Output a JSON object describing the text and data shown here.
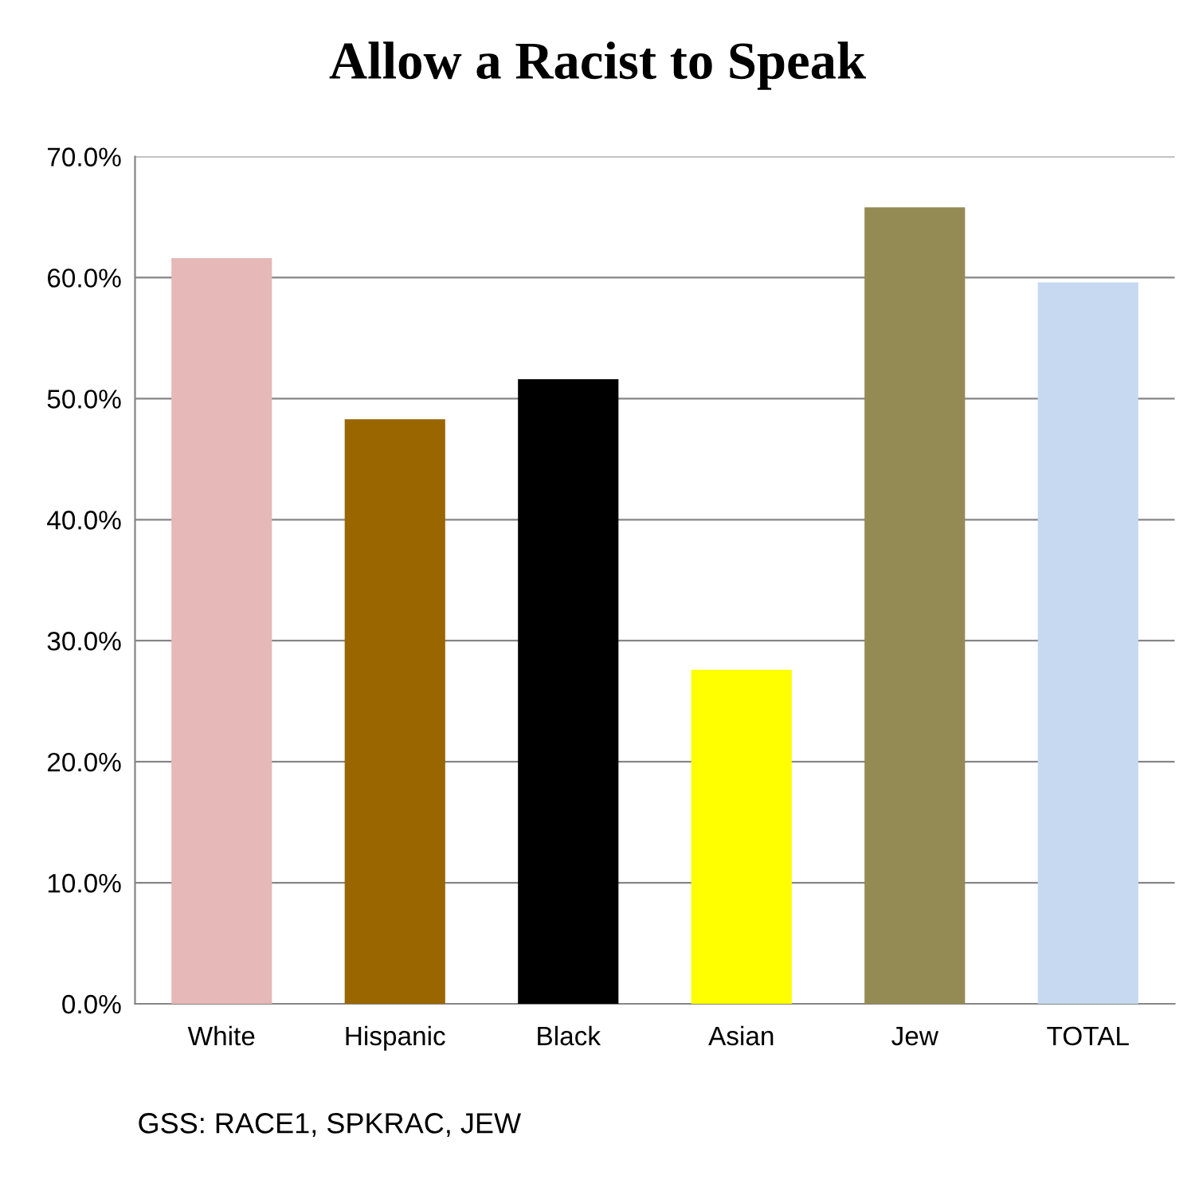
{
  "chart_data": {
    "type": "bar",
    "title": "Allow a Racist to Speak",
    "categories": [
      "White",
      "Hispanic",
      "Black",
      "Asian",
      "Jew",
      "TOTAL"
    ],
    "values": [
      61.6,
      48.3,
      51.6,
      27.6,
      65.8,
      59.6
    ],
    "colors": [
      "#e6b8b7",
      "#996600",
      "#000000",
      "#ffff00",
      "#948a54",
      "#c6d9f1"
    ],
    "ylim": [
      0,
      70
    ],
    "yticks": [
      {
        "value": 0,
        "label": "0.0%"
      },
      {
        "value": 10,
        "label": "10.0%"
      },
      {
        "value": 20,
        "label": "20.0%"
      },
      {
        "value": 30,
        "label": "30.0%"
      },
      {
        "value": 40,
        "label": "40.0%"
      },
      {
        "value": 50,
        "label": "50.0%"
      },
      {
        "value": 60,
        "label": "60.0%"
      },
      {
        "value": 70,
        "label": "70.0%"
      }
    ],
    "grid": "y",
    "legend": false,
    "annotations": [
      "GSS: RACE1, SPKRAC, JEW"
    ]
  }
}
